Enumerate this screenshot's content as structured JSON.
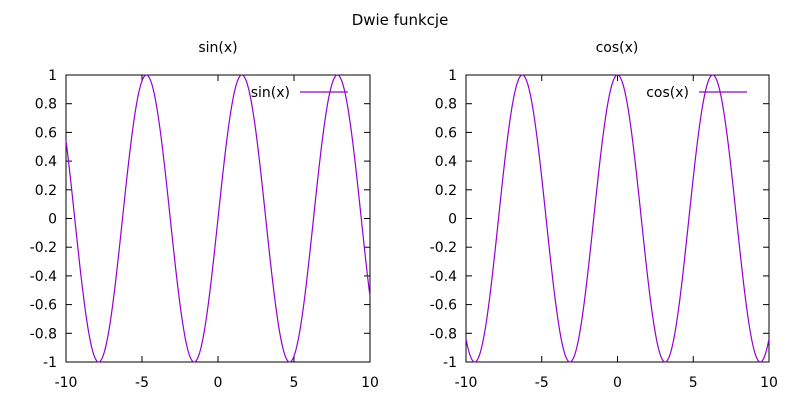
{
  "figure": {
    "title": "Dwie funkcje"
  },
  "chart_data": [
    {
      "type": "line",
      "title": "sin(x)",
      "xlabel": "",
      "ylabel": "",
      "xlim": [
        -10,
        10
      ],
      "ylim": [
        -1,
        1
      ],
      "x_ticks": [
        "-10",
        "-5",
        "0",
        "5",
        "10"
      ],
      "y_ticks": [
        "-1",
        "-0.8",
        "-0.6",
        "-0.4",
        "-0.2",
        "0",
        "0.2",
        "0.4",
        "0.6",
        "0.8",
        "1"
      ],
      "grid": false,
      "legend_position": "top-right",
      "series": [
        {
          "name": "sin(x)",
          "color": "#9400d3",
          "x": [
            -10,
            -9.5,
            -9,
            -8.5,
            -8,
            -7.5,
            -7,
            -6.5,
            -6,
            -5.5,
            -5,
            -4.5,
            -4,
            -3.5,
            -3,
            -2.5,
            -2,
            -1.5,
            -1,
            -0.5,
            0,
            0.5,
            1,
            1.5,
            2,
            2.5,
            3,
            3.5,
            4,
            4.5,
            5,
            5.5,
            6,
            6.5,
            7,
            7.5,
            8,
            8.5,
            9,
            9.5,
            10
          ],
          "y": [
            0.544,
            0.075,
            -0.412,
            -0.798,
            -0.989,
            -0.938,
            -0.657,
            -0.215,
            0.279,
            0.706,
            0.959,
            0.978,
            0.757,
            0.351,
            -0.141,
            -0.598,
            -0.909,
            -0.997,
            -0.841,
            -0.479,
            0,
            0.479,
            0.841,
            0.997,
            0.909,
            0.598,
            0.141,
            -0.351,
            -0.757,
            -0.978,
            -0.959,
            -0.706,
            -0.279,
            0.215,
            0.657,
            0.938,
            0.989,
            0.798,
            0.412,
            -0.075,
            -0.544
          ]
        }
      ]
    },
    {
      "type": "line",
      "title": "cos(x)",
      "xlabel": "",
      "ylabel": "",
      "xlim": [
        -10,
        10
      ],
      "ylim": [
        -1,
        1
      ],
      "x_ticks": [
        "-10",
        "-5",
        "0",
        "5",
        "10"
      ],
      "y_ticks": [
        "-1",
        "-0.8",
        "-0.6",
        "-0.4",
        "-0.2",
        "0",
        "0.2",
        "0.4",
        "0.6",
        "0.8",
        "1"
      ],
      "grid": false,
      "legend_position": "top-right",
      "series": [
        {
          "name": "cos(x)",
          "color": "#9400d3",
          "x": [
            -10,
            -9.5,
            -9,
            -8.5,
            -8,
            -7.5,
            -7,
            -6.5,
            -6,
            -5.5,
            -5,
            -4.5,
            -4,
            -3.5,
            -3,
            -2.5,
            -2,
            -1.5,
            -1,
            -0.5,
            0,
            0.5,
            1,
            1.5,
            2,
            2.5,
            3,
            3.5,
            4,
            4.5,
            5,
            5.5,
            6,
            6.5,
            7,
            7.5,
            8,
            8.5,
            9,
            9.5,
            10
          ],
          "y": [
            -0.839,
            -0.997,
            -0.911,
            -0.602,
            -0.146,
            0.347,
            0.754,
            0.977,
            0.96,
            0.709,
            0.284,
            -0.211,
            -0.654,
            -0.936,
            -0.99,
            -0.801,
            -0.416,
            0.071,
            0.54,
            0.878,
            1,
            0.878,
            0.54,
            0.071,
            -0.416,
            -0.801,
            -0.99,
            -0.936,
            -0.654,
            -0.211,
            0.284,
            0.709,
            0.96,
            0.977,
            0.754,
            0.347,
            -0.146,
            -0.602,
            -0.911,
            -0.997,
            -0.839
          ]
        }
      ]
    }
  ]
}
